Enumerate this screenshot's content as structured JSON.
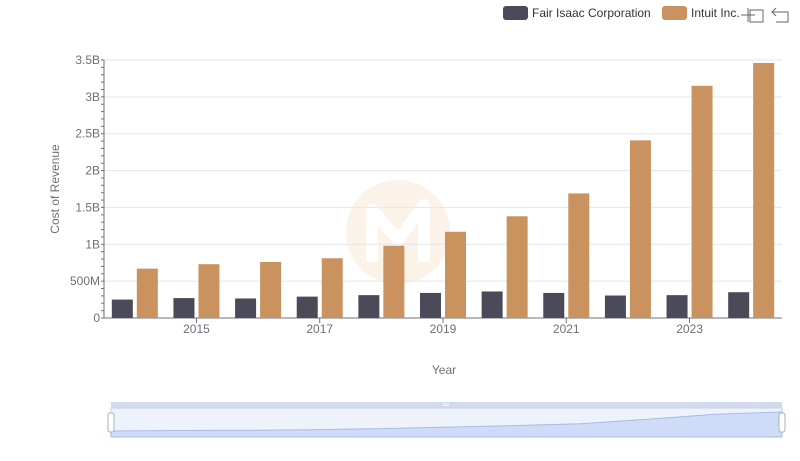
{
  "chart_data": {
    "type": "bar",
    "xlabel": "Year",
    "ylabel": "Cost of Revenue",
    "ylim": [
      0,
      3500000000
    ],
    "yticks": [
      {
        "value": 0,
        "label": "0"
      },
      {
        "value": 500000000,
        "label": "500M"
      },
      {
        "value": 1000000000,
        "label": "1B"
      },
      {
        "value": 1500000000,
        "label": "1.5B"
      },
      {
        "value": 2000000000,
        "label": "2B"
      },
      {
        "value": 2500000000,
        "label": "2.5B"
      },
      {
        "value": 3000000000,
        "label": "3B"
      },
      {
        "value": 3500000000,
        "label": "3.5B"
      }
    ],
    "categories": [
      "2014",
      "2015",
      "2016",
      "2017",
      "2018",
      "2019",
      "2020",
      "2021",
      "2022",
      "2023",
      "2024"
    ],
    "xtick_labels": [
      "2015",
      "2017",
      "2019",
      "2021",
      "2023"
    ],
    "legend_position": "top-right",
    "grid": true,
    "series": [
      {
        "name": "Fair Isaac Corporation",
        "color": "#4a4a58",
        "values": [
          250000000,
          270000000,
          265000000,
          290000000,
          310000000,
          340000000,
          360000000,
          340000000,
          305000000,
          310000000,
          350000000
        ]
      },
      {
        "name": "Intuit Inc.",
        "color": "#c9925e",
        "values": [
          670000000,
          730000000,
          760000000,
          810000000,
          980000000,
          1170000000,
          1380000000,
          1690000000,
          2410000000,
          3150000000,
          3460000000
        ]
      }
    ]
  },
  "toolbar": {
    "zoom_icon": "zoom-icon",
    "restore_icon": "restore-icon"
  }
}
